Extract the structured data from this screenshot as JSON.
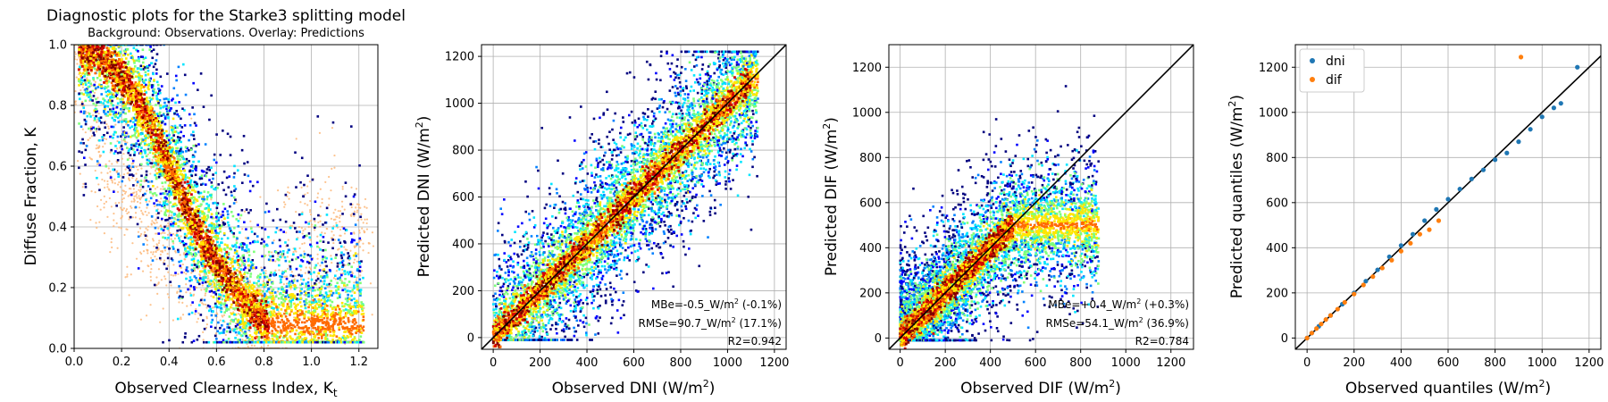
{
  "figure": {
    "colormap": [
      "#00007f",
      "#0000ff",
      "#0080ff",
      "#00e5ff",
      "#7dff7a",
      "#ffe600",
      "#ff6a00",
      "#d40000",
      "#7f0000"
    ],
    "overlay_color": "#fdb97a",
    "series_colors": {
      "dni": "#1f77b4",
      "dif": "#ff7f0e"
    }
  },
  "chart_data": [
    {
      "type": "heatmap",
      "title": "Diagnostic plots for the Starke3 splitting model",
      "subtitle": "Background: Observations. Overlay: Predictions",
      "xlabel": "Observed Clearness Index, K",
      "xlabel_sub": "t",
      "ylabel": "Diffuse Fraction, K",
      "xlim": [
        0,
        1.28
      ],
      "ylim": [
        0,
        1.0
      ],
      "xticks": [
        0.0,
        0.2,
        0.4,
        0.6,
        0.8,
        1.0,
        1.2
      ],
      "xtick_labels": [
        "0.0",
        "0.2",
        "0.4",
        "0.6",
        "0.8",
        "1.0",
        "1.2"
      ],
      "yticks": [
        0.0,
        0.2,
        0.4,
        0.6,
        0.8,
        1.0
      ],
      "ytick_labels": [
        "0.0",
        "0.2",
        "0.4",
        "0.6",
        "0.8",
        "1.0"
      ],
      "grid": true,
      "density_ridge": {
        "x": [
          0.02,
          0.1,
          0.2,
          0.3,
          0.4,
          0.5,
          0.6,
          0.7,
          0.76,
          0.82
        ],
        "y": [
          0.99,
          0.97,
          0.9,
          0.78,
          0.6,
          0.42,
          0.28,
          0.17,
          0.12,
          0.08
        ]
      },
      "overlay_points": {
        "x": [
          0.02,
          0.05,
          0.1,
          0.15,
          0.2,
          0.25,
          0.3,
          0.35,
          0.4,
          0.45,
          0.5,
          0.55,
          0.6,
          0.65,
          0.7,
          0.75,
          0.8,
          0.85,
          0.9,
          1.0,
          1.1,
          1.2
        ],
        "y": [
          0.95,
          0.85,
          0.7,
          0.6,
          0.55,
          0.48,
          0.42,
          0.4,
          0.35,
          0.33,
          0.3,
          0.27,
          0.23,
          0.2,
          0.17,
          0.13,
          0.1,
          0.08,
          0.3,
          0.35,
          0.37,
          0.35
        ]
      }
    },
    {
      "type": "heatmap",
      "xlabel": "Observed DNI (W/m",
      "ylabel": "Predicted DNI (W/m",
      "label_suffix_sup": "2",
      "xlim": [
        -50,
        1250
      ],
      "ylim": [
        -50,
        1250
      ],
      "ticks": [
        0,
        200,
        400,
        600,
        800,
        1000,
        1200
      ],
      "tick_labels": [
        "0",
        "200",
        "400",
        "600",
        "800",
        "1000",
        "1200"
      ],
      "grid": true,
      "identity_line": true,
      "density_ridge": {
        "x": [
          0,
          100,
          300,
          500,
          700,
          850,
          1000,
          1100
        ],
        "y": [
          0,
          100,
          300,
          500,
          700,
          850,
          1000,
          1100
        ]
      },
      "stats": {
        "mbe_value": "MBe=-0.5_W/m",
        "mbe_pct": " (-0.1%)",
        "rmse_value": "RMSe=90.7_W/m",
        "rmse_pct": " (17.1%)",
        "r2": "R2=0.942",
        "unit_sup": "2"
      }
    },
    {
      "type": "heatmap",
      "xlabel": "Observed DIF (W/m",
      "ylabel": "Predicted DIF (W/m",
      "label_suffix_sup": "2",
      "xlim": [
        -50,
        1300
      ],
      "ylim": [
        -50,
        1300
      ],
      "ticks": [
        0,
        200,
        400,
        600,
        800,
        1000,
        1200
      ],
      "tick_labels": [
        "0",
        "200",
        "400",
        "600",
        "800",
        "1000",
        "1200"
      ],
      "grid": true,
      "identity_line": true,
      "density_ridge": {
        "x": [
          0,
          50,
          100,
          200,
          300,
          400,
          500
        ],
        "y": [
          0,
          50,
          100,
          200,
          300,
          400,
          500
        ]
      },
      "stats": {
        "mbe_value": "MBe=+0.4_W/m",
        "mbe_pct": " (+0.3%)",
        "rmse_value": "RMSe=54.1_W/m",
        "rmse_pct": " (36.9%)",
        "r2": "R2=0.784",
        "unit_sup": "2"
      }
    },
    {
      "type": "scatter",
      "xlabel": "Observed quantiles (W/m",
      "ylabel": "Predicted quantiles (W/m",
      "label_suffix_sup": "2",
      "xlim": [
        -50,
        1250
      ],
      "ylim": [
        -50,
        1300
      ],
      "ticks": [
        0,
        200,
        400,
        600,
        800,
        1000,
        1200
      ],
      "tick_labels": [
        "0",
        "200",
        "400",
        "600",
        "800",
        "1000",
        "1200"
      ],
      "grid": true,
      "identity_line": true,
      "legend_position": "top-left",
      "series": [
        {
          "name": "dni",
          "x": [
            0,
            20,
            50,
            100,
            150,
            200,
            250,
            300,
            350,
            400,
            450,
            500,
            550,
            600,
            650,
            700,
            750,
            800,
            850,
            900,
            950,
            1000,
            1050,
            1080,
            1150
          ],
          "y": [
            0,
            22,
            52,
            100,
            150,
            200,
            252,
            302,
            360,
            410,
            460,
            520,
            570,
            615,
            660,
            705,
            745,
            790,
            820,
            870,
            925,
            980,
            1020,
            1040,
            1200
          ]
        },
        {
          "name": "dif",
          "x": [
            0,
            20,
            40,
            60,
            80,
            100,
            130,
            160,
            200,
            240,
            280,
            320,
            360,
            400,
            440,
            480,
            520,
            560,
            910
          ],
          "y": [
            0,
            22,
            42,
            62,
            82,
            100,
            128,
            158,
            195,
            235,
            272,
            310,
            345,
            385,
            420,
            460,
            480,
            520,
            1245
          ]
        }
      ]
    }
  ]
}
